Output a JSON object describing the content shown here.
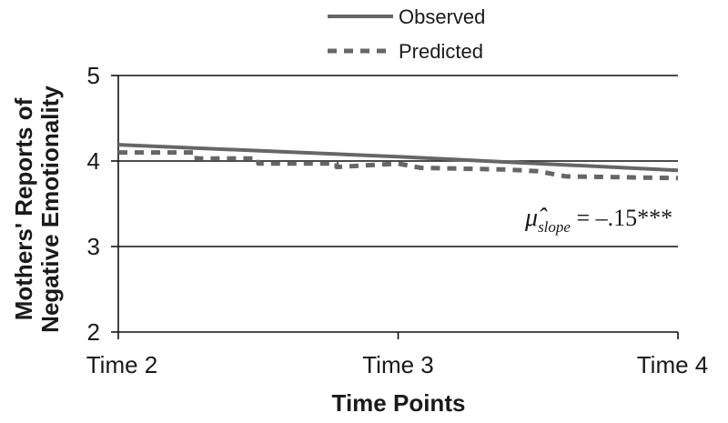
{
  "chart_data": {
    "type": "line",
    "title": "",
    "xlabel": "Time Points",
    "ylabel_lines": [
      "Mothers' Reports of",
      "Negative Emotionality"
    ],
    "categories": [
      "Time 2",
      "Time 3",
      "Time 4"
    ],
    "ylim": [
      2,
      5
    ],
    "yticks": [
      2,
      3,
      4,
      5
    ],
    "grid": "horizontal",
    "legend_position": "top-center",
    "series": [
      {
        "name": "Observed",
        "style": "solid",
        "color": "#666666",
        "points": [
          [
            0,
            4.19
          ],
          [
            1,
            4.05
          ],
          [
            2,
            3.89
          ]
        ]
      },
      {
        "name": "Predicted",
        "style": "dashed",
        "color": "#666666",
        "points": [
          [
            0,
            4.1
          ],
          [
            0.28,
            4.1
          ],
          [
            0.28,
            4.03
          ],
          [
            0.5,
            4.03
          ],
          [
            0.5,
            3.97
          ],
          [
            0.78,
            3.97
          ],
          [
            0.78,
            3.93
          ],
          [
            1,
            3.97
          ],
          [
            1.08,
            3.92
          ],
          [
            1.39,
            3.9
          ],
          [
            1.5,
            3.88
          ],
          [
            1.6,
            3.82
          ],
          [
            2,
            3.8
          ]
        ]
      }
    ],
    "annotation": {
      "symbol": "μ̂",
      "subscript": "slope",
      "text": " = –.15***"
    }
  }
}
